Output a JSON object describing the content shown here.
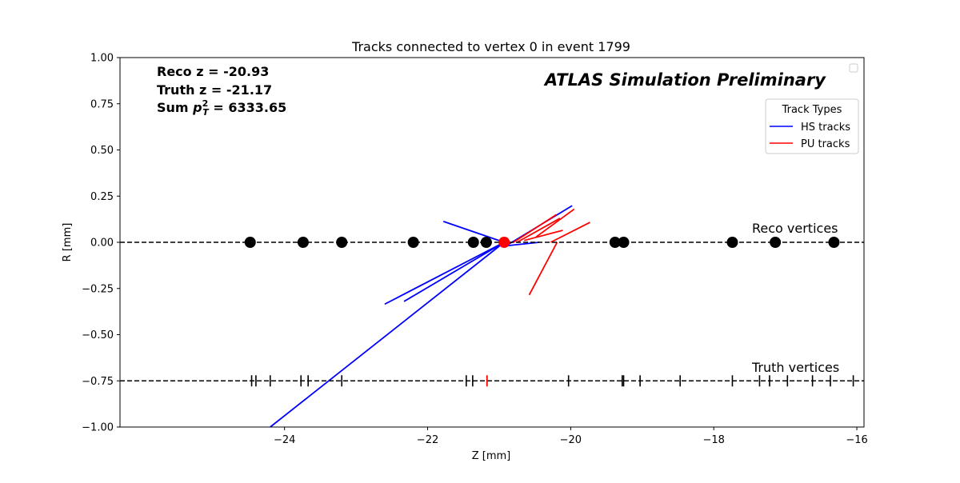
{
  "chart_data": {
    "type": "scatter",
    "title": "Tracks connected to vertex 0 in event 1799",
    "xlabel": "Z [mm]",
    "ylabel": "R [mm]",
    "xlim": [
      -26.3,
      -15.9
    ],
    "ylim": [
      -1.0,
      1.0
    ],
    "xticks": [
      -24,
      -22,
      -20,
      -18,
      -16
    ],
    "xtick_labels": [
      "−24",
      "−22",
      "−20",
      "−18",
      "−16"
    ],
    "yticks": [
      1.0,
      0.75,
      0.5,
      0.25,
      0.0,
      -0.25,
      -0.5,
      -0.75,
      -1.0
    ],
    "ytick_labels": [
      "1.00",
      "0.75",
      "0.50",
      "0.25",
      "0.00",
      "−0.25",
      "−0.50",
      "−0.75",
      "−1.00"
    ],
    "grid": false,
    "info_lines": [
      "Reco z = -20.93",
      "Truth z = -21.17",
      "Sum p²T = 6333.65"
    ],
    "sum_pt_label": "Sum ",
    "sum_pt_value": " = 6333.65",
    "sum_pt_symbol": {
      "base": "p",
      "sup": "2",
      "sub": "T"
    },
    "atlas_label": "ATLAS Simulation Preliminary",
    "reco_label": "Reco vertices",
    "truth_label": "Truth vertices",
    "reco_line_r": 0.0,
    "truth_line_r": -0.75,
    "reco_vertices_z": [
      -24.48,
      -23.74,
      -23.2,
      -22.2,
      -21.36,
      -21.18,
      -19.38,
      -19.26,
      -17.74,
      -17.14,
      -16.32
    ],
    "selected_vertex_z": -20.93,
    "truth_vertices_z": [
      -24.46,
      -24.4,
      -24.2,
      -23.77,
      -23.67,
      -23.2,
      -21.46,
      -21.37,
      -20.03,
      -19.28,
      -19.26,
      -19.03,
      -18.47,
      -17.74,
      -17.36,
      -17.22,
      -16.97,
      -16.62,
      -16.37,
      -16.05
    ],
    "truth_selected_z": -21.17,
    "legend": {
      "title": "Track Types",
      "placement": "upper right",
      "entries": [
        {
          "label": "HS tracks",
          "color": "#0000ff"
        },
        {
          "label": "PU tracks",
          "color": "#ff0000"
        }
      ]
    },
    "series": [
      {
        "name": "HS tracks",
        "color": "#0000ff",
        "segments": [
          [
            [
              -20.93,
              0.0
            ],
            [
              -24.2,
              -1.0
            ]
          ],
          [
            [
              -20.93,
              0.0
            ],
            [
              -22.6,
              -0.335
            ]
          ],
          [
            [
              -20.93,
              0.0
            ],
            [
              -22.33,
              -0.32
            ]
          ],
          [
            [
              -20.93,
              0.0
            ],
            [
              -21.78,
              0.113
            ]
          ],
          [
            [
              -20.93,
              -0.025
            ],
            [
              -19.98,
              0.198
            ]
          ],
          [
            [
              -20.93,
              -0.02
            ],
            [
              -20.44,
              0.0
            ]
          ]
        ]
      },
      {
        "name": "PU tracks",
        "color": "#ff0000",
        "segments": [
          [
            [
              -20.8,
              0.0
            ],
            [
              -20.2,
              0.15
            ]
          ],
          [
            [
              -20.75,
              0.0
            ],
            [
              -20.15,
              0.13
            ]
          ],
          [
            [
              -20.48,
              0.03
            ],
            [
              -19.95,
              0.18
            ]
          ],
          [
            [
              -20.65,
              0.01
            ],
            [
              -20.11,
              0.065
            ]
          ],
          [
            [
              -20.28,
              0.0
            ],
            [
              -19.73,
              0.108
            ]
          ],
          [
            [
              -20.19,
              0.0
            ],
            [
              -20.58,
              -0.285
            ]
          ]
        ]
      }
    ],
    "colors": {
      "hs": "#0000ff",
      "pu": "#ff0000",
      "vertex": "#000000",
      "selected": "#ff0000"
    }
  }
}
